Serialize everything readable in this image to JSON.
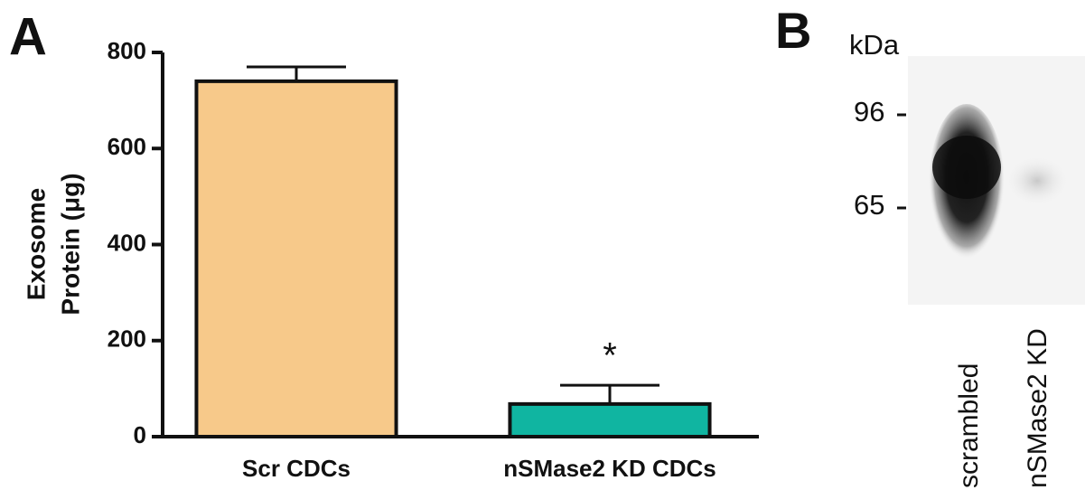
{
  "panels": [
    "A",
    "B"
  ],
  "chart_data": {
    "type": "bar",
    "ylabel": [
      "Exosome",
      "Protein (μg)"
    ],
    "categories": [
      "Scr CDCs",
      "nSMase2 KD CDCs"
    ],
    "values": [
      740,
      68
    ],
    "errors": [
      30,
      39
    ],
    "colors": [
      "#f7c98a",
      "#10b5a1"
    ],
    "annotations": [
      null,
      "*"
    ],
    "ylim": [
      0,
      800
    ],
    "yticks": [
      0,
      200,
      400,
      600,
      800
    ]
  },
  "blot": {
    "unit": "kDa",
    "markers": [
      96,
      65
    ],
    "lanes": [
      "scrambled",
      "nSMase2 KD"
    ]
  }
}
